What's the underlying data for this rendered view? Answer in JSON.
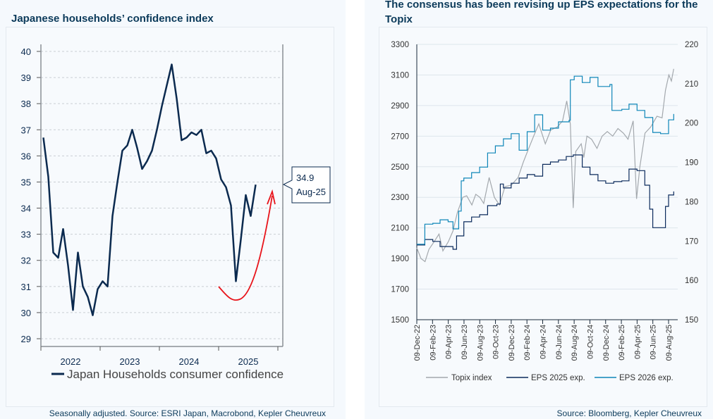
{
  "chart_data": [
    {
      "type": "line",
      "title": "Japanese households’ confidence index",
      "footnote": "Seasonally adjusted. Source: ESRI Japan, Macrobond, Kepler Cheuvreux",
      "xlabel": "",
      "ylabel": "",
      "ylim": [
        29,
        40
      ],
      "yticks": [
        29,
        30,
        31,
        32,
        33,
        34,
        35,
        36,
        37,
        38,
        39,
        40
      ],
      "xticks": [
        "2022",
        "2023",
        "2024",
        "2025"
      ],
      "grid": true,
      "legend_placement": "bottom",
      "series": [
        {
          "name": "Japan Households consumer confidence",
          "color": "#0b2a4f",
          "start": "2022-01",
          "frequency": "monthly",
          "values": [
            36.7,
            35.2,
            32.3,
            32.1,
            33.2,
            31.8,
            30.1,
            32.3,
            31.0,
            30.6,
            29.9,
            30.9,
            31.2,
            31.0,
            33.7,
            35.0,
            36.2,
            36.4,
            37.0,
            36.3,
            35.5,
            35.8,
            36.2,
            37.0,
            37.9,
            38.7,
            39.5,
            38.2,
            36.6,
            36.7,
            36.9,
            36.8,
            37.0,
            36.1,
            36.2,
            35.9,
            35.1,
            34.8,
            34.1,
            31.2,
            32.8,
            34.5,
            33.7,
            34.9
          ]
        }
      ],
      "annotation": {
        "value": "34.9",
        "date": "Aug-25",
        "arrow_color": "#e8141b"
      }
    },
    {
      "type": "line",
      "title": "The consensus has been revising up EPS expectations for the Topix",
      "footnote": "Source: Bloomberg, Kepler Cheuvreux",
      "ylim": [
        1500,
        3300
      ],
      "yticks": [
        1500,
        1700,
        1900,
        2100,
        2300,
        2500,
        2700,
        2900,
        3100,
        3300
      ],
      "y2lim": [
        150,
        220
      ],
      "y2ticks": [
        150,
        160,
        170,
        180,
        190,
        200,
        210,
        220
      ],
      "xticks": [
        "09-Dec-22",
        "09-Feb-23",
        "09-Apr-23",
        "09-Jun-23",
        "09-Aug-23",
        "09-Oct-23",
        "09-Dec-23",
        "09-Feb-24",
        "09-Apr-24",
        "09-Jun-24",
        "09-Aug-24",
        "09-Oct-24",
        "09-Dec-24",
        "09-Feb-25",
        "09-Apr-25",
        "09-Jun-25",
        "09-Aug-25"
      ],
      "grid": true,
      "legend_placement": "bottom",
      "series": [
        {
          "name": "Topix index",
          "axis": "left",
          "color": "#a3a8ad",
          "points": [
            [
              "2022-12-09",
              1970
            ],
            [
              "2022-12-25",
              1900
            ],
            [
              "2023-01-10",
              1880
            ],
            [
              "2023-01-25",
              1960
            ],
            [
              "2023-02-10",
              2000
            ],
            [
              "2023-03-05",
              2060
            ],
            [
              "2023-03-20",
              1950
            ],
            [
              "2023-04-10",
              2010
            ],
            [
              "2023-04-28",
              2080
            ],
            [
              "2023-05-15",
              2200
            ],
            [
              "2023-06-05",
              2300
            ],
            [
              "2023-06-20",
              2310
            ],
            [
              "2023-07-10",
              2250
            ],
            [
              "2023-07-25",
              2320
            ],
            [
              "2023-08-10",
              2300
            ],
            [
              "2023-08-25",
              2260
            ],
            [
              "2023-09-15",
              2430
            ],
            [
              "2023-10-05",
              2300
            ],
            [
              "2023-10-25",
              2250
            ],
            [
              "2023-11-15",
              2370
            ],
            [
              "2023-12-10",
              2380
            ],
            [
              "2024-01-05",
              2430
            ],
            [
              "2024-01-25",
              2530
            ],
            [
              "2024-02-15",
              2620
            ],
            [
              "2024-03-05",
              2700
            ],
            [
              "2024-03-25",
              2780
            ],
            [
              "2024-04-19",
              2650
            ],
            [
              "2024-05-10",
              2740
            ],
            [
              "2024-06-05",
              2760
            ],
            [
              "2024-06-25",
              2800
            ],
            [
              "2024-07-11",
              2930
            ],
            [
              "2024-07-25",
              2780
            ],
            [
              "2024-08-05",
              2230
            ],
            [
              "2024-08-15",
              2600
            ],
            [
              "2024-09-05",
              2650
            ],
            [
              "2024-09-15",
              2560
            ],
            [
              "2024-09-27",
              2700
            ],
            [
              "2024-10-15",
              2680
            ],
            [
              "2024-11-05",
              2620
            ],
            [
              "2024-11-25",
              2700
            ],
            [
              "2024-12-15",
              2730
            ],
            [
              "2025-01-05",
              2700
            ],
            [
              "2025-01-25",
              2750
            ],
            [
              "2025-02-15",
              2720
            ],
            [
              "2025-03-05",
              2680
            ],
            [
              "2025-03-25",
              2800
            ],
            [
              "2025-04-07",
              2290
            ],
            [
              "2025-04-20",
              2500
            ],
            [
              "2025-05-10",
              2720
            ],
            [
              "2025-06-01",
              2760
            ],
            [
              "2025-06-25",
              2830
            ],
            [
              "2025-07-15",
              2820
            ],
            [
              "2025-07-28",
              3000
            ],
            [
              "2025-08-10",
              3100
            ],
            [
              "2025-08-20",
              3060
            ],
            [
              "2025-08-29",
              3140
            ]
          ]
        },
        {
          "name": "EPS 2025 exp.",
          "axis": "right",
          "color": "#0b2a5c",
          "points": [
            [
              "2022-12-09",
              169.0
            ],
            [
              "2023-01-09",
              170.4
            ],
            [
              "2023-02-09",
              169.9
            ],
            [
              "2023-03-09",
              168.6
            ],
            [
              "2023-04-28",
              167.9
            ],
            [
              "2023-05-12",
              171.3
            ],
            [
              "2023-06-09",
              174.9
            ],
            [
              "2023-07-09",
              176.1
            ],
            [
              "2023-08-09",
              176.7
            ],
            [
              "2023-09-09",
              179.0
            ],
            [
              "2023-10-15",
              179.4
            ],
            [
              "2023-10-28",
              184.5
            ],
            [
              "2023-11-09",
              183.5
            ],
            [
              "2023-12-09",
              184.7
            ],
            [
              "2024-01-09",
              186.0
            ],
            [
              "2024-02-09",
              186.9
            ],
            [
              "2024-03-09",
              186.5
            ],
            [
              "2024-04-09",
              189.5
            ],
            [
              "2024-05-09",
              190.1
            ],
            [
              "2024-06-09",
              190.6
            ],
            [
              "2024-07-09",
              191.5
            ],
            [
              "2024-08-05",
              191.9
            ],
            [
              "2024-09-09",
              188.8
            ],
            [
              "2024-10-09",
              186.9
            ],
            [
              "2024-11-09",
              185.3
            ],
            [
              "2024-12-09",
              184.7
            ],
            [
              "2025-01-09",
              185.1
            ],
            [
              "2025-02-09",
              185.3
            ],
            [
              "2025-03-09",
              188.3
            ],
            [
              "2025-04-09",
              187.9
            ],
            [
              "2025-05-09",
              184.2
            ],
            [
              "2025-05-28",
              178.1
            ],
            [
              "2025-06-09",
              173.4
            ],
            [
              "2025-07-09",
              173.4
            ],
            [
              "2025-07-28",
              178.8
            ],
            [
              "2025-08-09",
              181.7
            ],
            [
              "2025-08-29",
              182.6
            ]
          ]
        },
        {
          "name": "EPS 2026 exp.",
          "axis": "right",
          "color": "#0e86b8",
          "points": [
            [
              "2022-12-09",
              169.2
            ],
            [
              "2023-01-09",
              174.3
            ],
            [
              "2023-02-09",
              174.5
            ],
            [
              "2023-03-09",
              175.4
            ],
            [
              "2023-04-09",
              174.9
            ],
            [
              "2023-04-28",
              173.1
            ],
            [
              "2023-05-20",
              177.6
            ],
            [
              "2023-05-30",
              185.3
            ],
            [
              "2023-06-09",
              186.0
            ],
            [
              "2023-07-09",
              187.4
            ],
            [
              "2023-08-09",
              188.8
            ],
            [
              "2023-09-09",
              192.4
            ],
            [
              "2023-10-09",
              194.2
            ],
            [
              "2023-11-09",
              196.0
            ],
            [
              "2023-12-09",
              197.3
            ],
            [
              "2024-01-09",
              193.1
            ],
            [
              "2024-02-09",
              197.8
            ],
            [
              "2024-03-09",
              202.1
            ],
            [
              "2024-04-09",
              198.2
            ],
            [
              "2024-05-09",
              198.7
            ],
            [
              "2024-06-09",
              200.3
            ],
            [
              "2024-07-20",
              200.7
            ],
            [
              "2024-07-25",
              211.0
            ],
            [
              "2024-08-09",
              211.9
            ],
            [
              "2024-09-09",
              210.3
            ],
            [
              "2024-10-09",
              211.6
            ],
            [
              "2024-11-09",
              209.3
            ],
            [
              "2024-12-25",
              209.8
            ],
            [
              "2025-01-02",
              203.2
            ],
            [
              "2025-02-09",
              203.5
            ],
            [
              "2025-03-09",
              204.8
            ],
            [
              "2025-04-09",
              203.2
            ],
            [
              "2025-05-09",
              201.4
            ],
            [
              "2025-06-09",
              197.6
            ],
            [
              "2025-07-09",
              197.3
            ],
            [
              "2025-08-09",
              200.8
            ],
            [
              "2025-08-29",
              202.3
            ]
          ]
        }
      ]
    }
  ]
}
